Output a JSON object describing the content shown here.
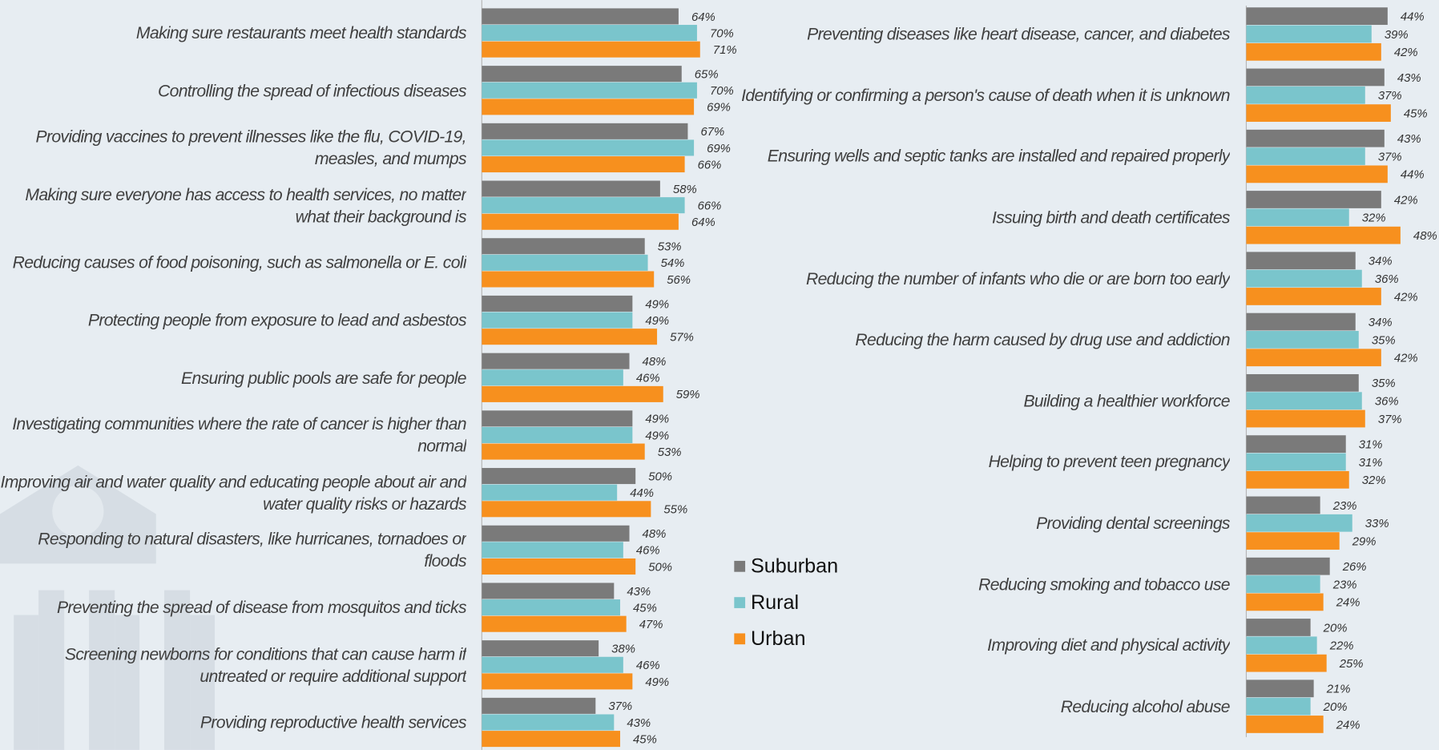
{
  "chart_data": [
    {
      "type": "bar",
      "orientation": "horizontal",
      "xlim": [
        0,
        100
      ],
      "categories": [
        "Making sure restaurants meet health standards",
        "Controlling the spread of infectious diseases",
        "Providing vaccines to prevent illnesses like the flu, COVID-19, measles, and mumps",
        "Making sure everyone has access to health services, no matter what their background is",
        "Reducing causes of food poisoning, such as salmonella or E. coli",
        "Protecting people from exposure to lead and asbestos",
        "Ensuring public pools are safe for people",
        "Investigating communities where the rate of cancer is higher than normal",
        "Improving air and water quality and educating people about air and water quality risks or hazards",
        "Responding to natural disasters, like hurricanes, tornadoes or floods",
        "Preventing the spread of disease from mosquitos and ticks",
        "Screening newborns for conditions that can cause harm if untreated or require additional support",
        "Providing reproductive health services"
      ],
      "series": [
        {
          "name": "Suburban",
          "color": "#7a7a7a",
          "values": [
            64,
            65,
            67,
            58,
            53,
            49,
            48,
            49,
            50,
            48,
            43,
            38,
            37
          ],
          "value_labels": [
            "64%",
            "65%",
            "67%",
            "58%",
            "53%",
            "49%",
            "48%",
            "49%",
            "50%",
            "48%",
            "43%",
            "38%",
            "37%"
          ]
        },
        {
          "name": "Rural",
          "color": "#7ac5cc",
          "values": [
            70,
            70,
            69,
            66,
            54,
            49,
            46,
            49,
            44,
            46,
            45,
            46,
            43
          ],
          "value_labels": [
            "70%",
            "70%",
            "69%",
            "66%",
            "54%",
            "49%",
            "46%",
            "49%",
            "44%",
            "46%",
            "45%",
            "46%",
            "43%"
          ]
        },
        {
          "name": "Urban",
          "color": "#f7901e",
          "values": [
            71,
            69,
            66,
            64,
            56,
            57,
            59,
            53,
            55,
            50,
            47,
            49,
            45
          ],
          "value_labels": [
            "71%",
            "69%",
            "66%",
            "64%",
            "56%",
            "57%",
            "59%",
            "53%",
            "55%",
            "50%",
            "47%",
            "49%",
            "45%"
          ]
        }
      ]
    },
    {
      "type": "bar",
      "orientation": "horizontal",
      "xlim": [
        0,
        100
      ],
      "categories": [
        "Preventing diseases like heart disease, cancer, and diabetes",
        "Identifying or confirming a person's cause of death when it is unknown",
        "Ensuring wells and septic tanks are installed and repaired properly",
        "Issuing birth and death certificates",
        "Reducing the number of infants who die or are born too early",
        "Reducing the harm caused by drug use and addiction",
        "Building a healthier workforce",
        "Helping to prevent teen pregnancy",
        "Providing dental screenings",
        "Reducing smoking and tobacco use",
        "Improving diet and physical activity",
        "Reducing alcohol abuse"
      ],
      "series": [
        {
          "name": "Suburban",
          "color": "#7a7a7a",
          "values": [
            44,
            43,
            43,
            42,
            34,
            34,
            35,
            31,
            23,
            26,
            20,
            21
          ],
          "value_labels": [
            "44%",
            "43%",
            "43%",
            "42%",
            "34%",
            "34%",
            "35%",
            "31%",
            "23%",
            "26%",
            "20%",
            "21%"
          ]
        },
        {
          "name": "Rural",
          "color": "#7ac5cc",
          "values": [
            39,
            37,
            37,
            32,
            36,
            35,
            36,
            31,
            33,
            23,
            22,
            20
          ],
          "value_labels": [
            "39%",
            "37%",
            "37%",
            "32%",
            "36%",
            "35%",
            "36%",
            "31%",
            "33%",
            "23%",
            "22%",
            "20%"
          ]
        },
        {
          "name": "Urban",
          "color": "#f7901e",
          "values": [
            42,
            45,
            44,
            48,
            42,
            42,
            37,
            32,
            29,
            24,
            25,
            24
          ],
          "value_labels": [
            "42%",
            "45%",
            "44%",
            "48%",
            "42%",
            "42%",
            "37%",
            "32%",
            "29%",
            "24%",
            "25%",
            "24%"
          ]
        }
      ]
    }
  ]
}
